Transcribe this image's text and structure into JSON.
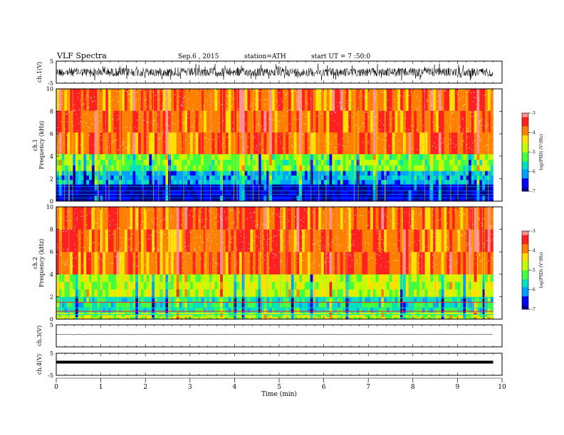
{
  "header": {
    "title": "VLF Spectra",
    "date": "Sep.6 , 2015",
    "station": "station=ATH",
    "start": "start UT =  7 :50:0"
  },
  "colors": {
    "spectrogram_scale": [
      "#00008b",
      "#0000ff",
      "#00a0ff",
      "#00e0c0",
      "#40ff40",
      "#c0ff00",
      "#ffe000",
      "#ff8000",
      "#ff2020",
      "#ff9090",
      "#ffffff"
    ]
  },
  "chart_data": [
    {
      "type": "line",
      "name": "ch1-waveform",
      "ylabel": "ch.1(V)",
      "ylim": [
        -5,
        5
      ],
      "yticks": [
        "5",
        "-5"
      ],
      "trace": "noisy broadband waveform, amplitude approx ±1.5 V"
    },
    {
      "type": "heatmap",
      "name": "ch1-spectrogram",
      "ylabel": "ch.1\nFrequency (kHz)",
      "ylabel_lines": [
        "ch.1",
        "Frequency (kHz)"
      ],
      "ylim": [
        0,
        10
      ],
      "yticks": [
        "10",
        "8",
        "6",
        "4",
        "2",
        "0"
      ],
      "colorbar_label": "log(PSD) (V²/Hz)",
      "colorbar_ticks": [
        "-3",
        "-4",
        "-5",
        "-6",
        "-7"
      ],
      "colorbar_range": [
        -7,
        -3
      ],
      "description_levels": [
        {
          "freq_khz": [
            0,
            1.5
          ],
          "log_psd": -6.8
        },
        {
          "freq_khz": [
            1.5,
            2.7
          ],
          "log_psd": -6.0
        },
        {
          "freq_khz": [
            2.7,
            4.2
          ],
          "log_psd": -5.1
        },
        {
          "freq_khz": [
            4.2,
            10
          ],
          "log_psd": -3.8
        }
      ]
    },
    {
      "type": "heatmap",
      "name": "ch2-spectrogram",
      "ylabel_lines": [
        "ch.2",
        "Frequency (kHz)"
      ],
      "ylim": [
        0,
        10
      ],
      "yticks": [
        "10",
        "8",
        "6",
        "4",
        "2",
        "0"
      ],
      "colorbar_label": "log(PSD) (V²/Hz)",
      "colorbar_ticks": [
        "-3",
        "-4",
        "-5",
        "-6",
        "-7"
      ],
      "colorbar_range": [
        -7,
        -3
      ],
      "description_levels": [
        {
          "freq_khz": [
            0,
            0.6
          ],
          "log_psd": -4.8
        },
        {
          "freq_khz": [
            0.6,
            2.0
          ],
          "log_psd": -5.6
        },
        {
          "freq_khz": [
            2.0,
            4.0
          ],
          "log_psd": -4.8
        },
        {
          "freq_khz": [
            4.0,
            10
          ],
          "log_psd": -3.8
        }
      ]
    },
    {
      "type": "line",
      "name": "ch3-waveform",
      "ylabel": "ch.3(V)",
      "ylim": [
        -5,
        5
      ],
      "yticks": [
        "5"
      ],
      "trace": "flat near 0 V with slight noise"
    },
    {
      "type": "line",
      "name": "ch4-waveform",
      "ylabel": "ch.4(V)",
      "ylim": [
        -5,
        5
      ],
      "yticks": [
        "5",
        "-5"
      ],
      "trace": "thick constant band near 0 V"
    }
  ],
  "xaxis": {
    "xlabel": "Time  (min)",
    "xlim": [
      0,
      10
    ],
    "ticks": [
      "0",
      "1",
      "2",
      "3",
      "4",
      "5",
      "6",
      "7",
      "8",
      "9",
      "10"
    ],
    "data_end_min": 9.8
  }
}
